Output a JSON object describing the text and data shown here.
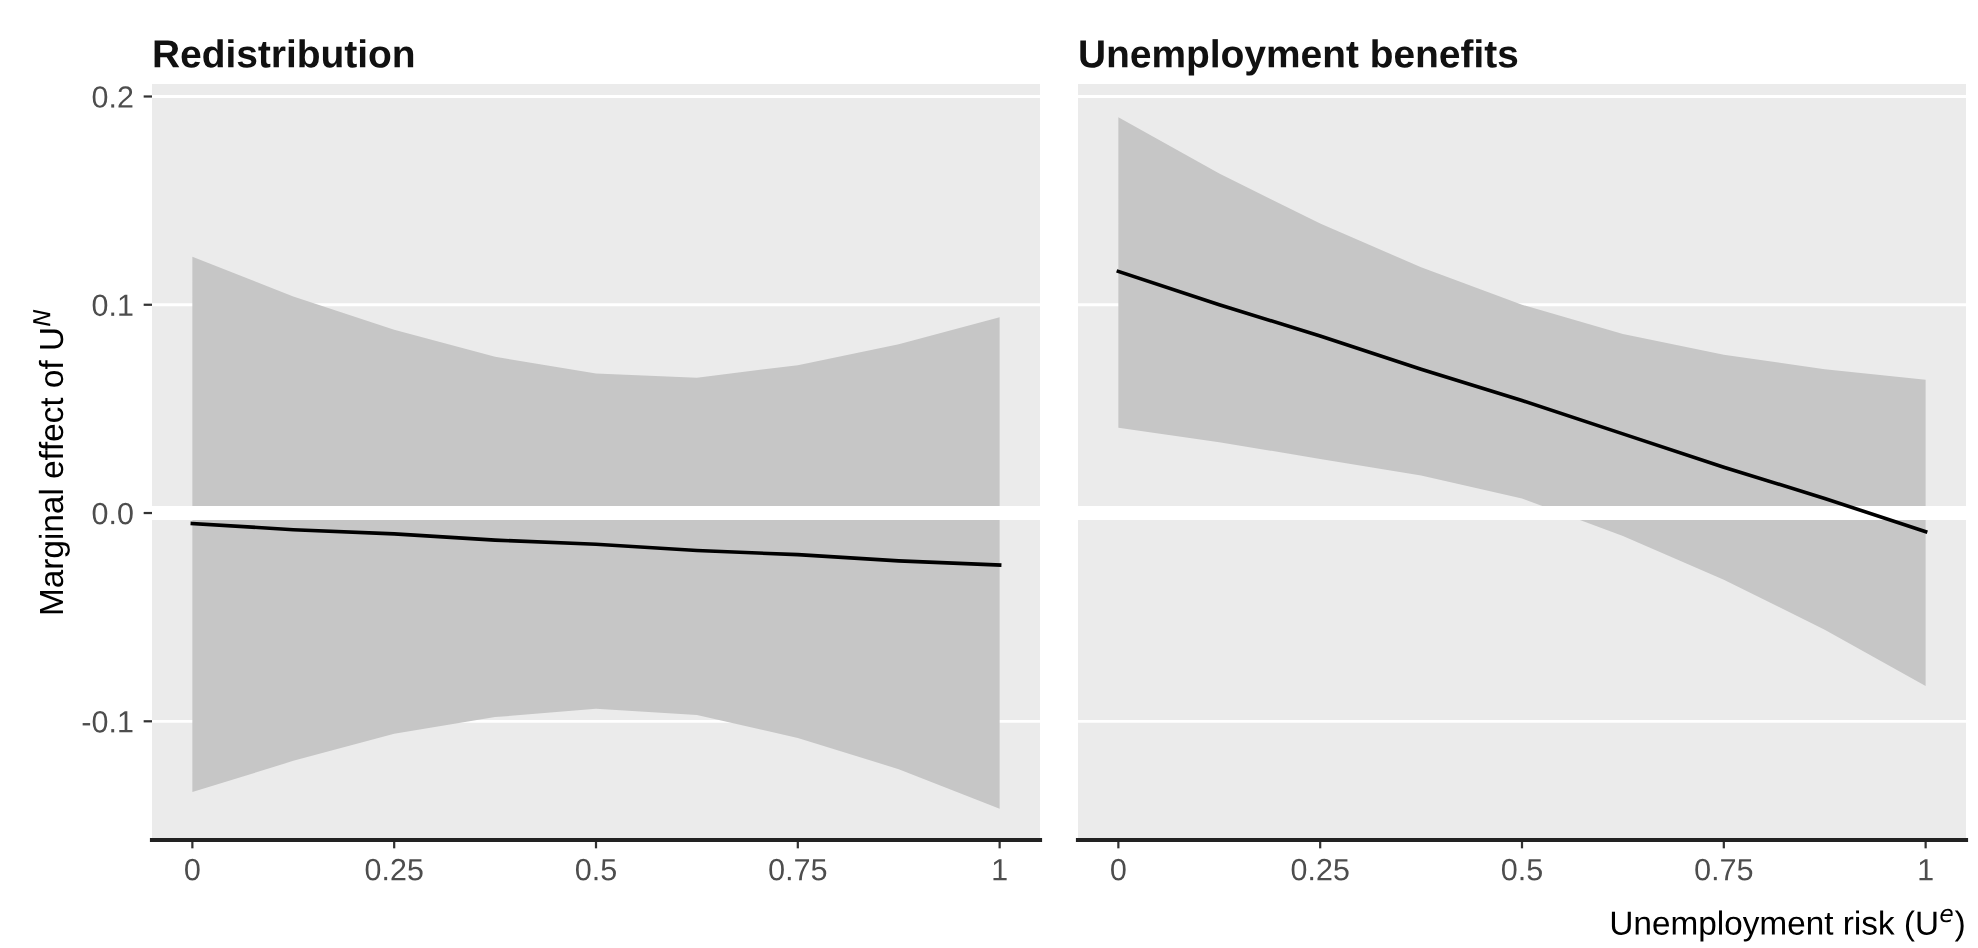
{
  "chart_data": [
    {
      "type": "line",
      "title": "Redistribution",
      "ylabel": "Marginal effect of U$^{N}$",
      "xlim": [
        -0.05,
        1.05
      ],
      "xticks": [
        0,
        0.25,
        0.5,
        0.75,
        1
      ],
      "ylim": [
        -0.157,
        0.206
      ],
      "yticks": [
        -0.1,
        {
          "value": 0,
          "label": "0.0"
        },
        0.1,
        0.2
      ],
      "grid": "y",
      "ref_lines": [
        {
          "axis": "y",
          "value": 0,
          "color": "#ffffff"
        }
      ],
      "series": [
        {
          "color": "#000000",
          "x": [
            0,
            0.125,
            0.25,
            0.375,
            0.5,
            0.625,
            0.75,
            0.875,
            1
          ],
          "values": [
            -0.005,
            -0.008,
            -0.01,
            -0.013,
            -0.015,
            -0.018,
            -0.02,
            -0.023,
            -0.025
          ],
          "lower": [
            -0.134,
            -0.119,
            -0.106,
            -0.098,
            -0.094,
            -0.097,
            -0.108,
            -0.123,
            -0.142
          ],
          "upper": [
            0.123,
            0.104,
            0.088,
            0.075,
            0.067,
            0.065,
            0.071,
            0.081,
            0.094
          ]
        }
      ]
    },
    {
      "type": "line",
      "title": "Unemployment benefits",
      "xlabel": "Unemployment risk (U$^{e}$)",
      "xlim": [
        -0.05,
        1.05
      ],
      "xticks": [
        0,
        0.25,
        0.5,
        0.75,
        1
      ],
      "ylim": [
        -0.157,
        0.206
      ],
      "yticks": [
        -0.1,
        0,
        0.1,
        0.2
      ],
      "grid": "y",
      "tick_labels": "x",
      "ref_lines": [
        {
          "axis": "y",
          "value": 0,
          "color": "#ffffff"
        }
      ],
      "series": [
        {
          "color": "#000000",
          "x": [
            0,
            0.125,
            0.25,
            0.375,
            0.5,
            0.625,
            0.75,
            0.875,
            1
          ],
          "values": [
            0.116,
            0.1,
            0.085,
            0.069,
            0.054,
            0.038,
            0.022,
            0.007,
            -0.009
          ],
          "lower": [
            0.041,
            0.034,
            0.026,
            0.018,
            0.007,
            -0.011,
            -0.032,
            -0.056,
            -0.083
          ],
          "upper": [
            0.19,
            0.163,
            0.139,
            0.118,
            0.1,
            0.086,
            0.076,
            0.069,
            0.064
          ]
        }
      ]
    }
  ]
}
